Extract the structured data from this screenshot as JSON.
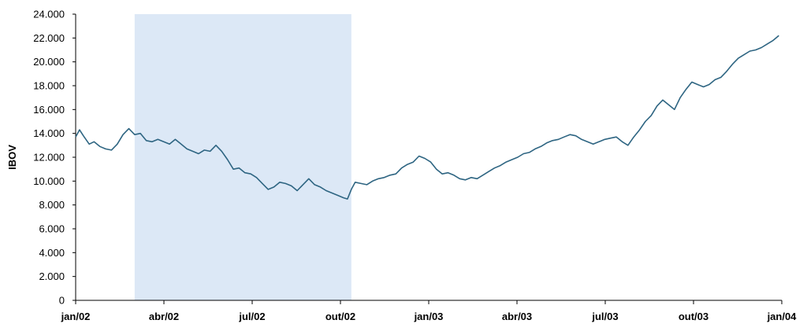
{
  "chart_data": {
    "type": "line",
    "title": "",
    "xlabel": "",
    "ylabel": "IBOV",
    "ylim": [
      0,
      24000
    ],
    "xlim": [
      "2002-01-02",
      "2004-01-02"
    ],
    "grid": false,
    "yticks": [
      "0",
      "2.000",
      "4.000",
      "6.000",
      "8.000",
      "10.000",
      "12.000",
      "14.000",
      "16.000",
      "18.000",
      "20.000",
      "22.000",
      "24.000"
    ],
    "xticks": [
      "jan/02",
      "abr/02",
      "jul/02",
      "out/02",
      "jan/03",
      "abr/03",
      "jul/03",
      "out/03",
      "jan/04"
    ],
    "shaded_region": {
      "from": "2002-03-04",
      "to": "2002-10-14",
      "color": "#dce8f6"
    },
    "line_color": "#2e6582",
    "series": [
      {
        "x": [
          "2002-01-02",
          "2002-01-06",
          "2002-01-10",
          "2002-01-16",
          "2002-01-21",
          "2002-01-27",
          "2002-02-02",
          "2002-02-08",
          "2002-02-14",
          "2002-02-20",
          "2002-02-26",
          "2002-03-04",
          "2002-03-10",
          "2002-03-16",
          "2002-03-22",
          "2002-03-28",
          "2002-04-03",
          "2002-04-09",
          "2002-04-15",
          "2002-04-21",
          "2002-04-27",
          "2002-05-03",
          "2002-05-09",
          "2002-05-15",
          "2002-05-21",
          "2002-05-27",
          "2002-06-02",
          "2002-06-08",
          "2002-06-14",
          "2002-06-20",
          "2002-06-26",
          "2002-07-02",
          "2002-07-08",
          "2002-07-14",
          "2002-07-20",
          "2002-07-26",
          "2002-08-01",
          "2002-08-07",
          "2002-08-13",
          "2002-08-19",
          "2002-08-25",
          "2002-08-31",
          "2002-09-06",
          "2002-09-12",
          "2002-09-18",
          "2002-09-24",
          "2002-09-30",
          "2002-10-06",
          "2002-10-10",
          "2002-10-14",
          "2002-10-18",
          "2002-10-24",
          "2002-10-30",
          "2002-11-05",
          "2002-11-11",
          "2002-11-17",
          "2002-11-23",
          "2002-11-29",
          "2002-12-05",
          "2002-12-11",
          "2002-12-17",
          "2002-12-23",
          "2002-12-29",
          "2003-01-04",
          "2003-01-10",
          "2003-01-16",
          "2003-01-22",
          "2003-01-28",
          "2003-02-03",
          "2003-02-09",
          "2003-02-15",
          "2003-02-21",
          "2003-02-27",
          "2003-03-05",
          "2003-03-11",
          "2003-03-17",
          "2003-03-23",
          "2003-03-29",
          "2003-04-04",
          "2003-04-10",
          "2003-04-16",
          "2003-04-22",
          "2003-04-28",
          "2003-05-04",
          "2003-05-10",
          "2003-05-16",
          "2003-05-22",
          "2003-05-28",
          "2003-06-03",
          "2003-06-09",
          "2003-06-15",
          "2003-06-21",
          "2003-06-27",
          "2003-07-03",
          "2003-07-09",
          "2003-07-15",
          "2003-07-21",
          "2003-07-27",
          "2003-08-02",
          "2003-08-08",
          "2003-08-14",
          "2003-08-20",
          "2003-08-26",
          "2003-09-01",
          "2003-09-07",
          "2003-09-13",
          "2003-09-19",
          "2003-09-25",
          "2003-10-01",
          "2003-10-07",
          "2003-10-13",
          "2003-10-19",
          "2003-10-25",
          "2003-10-31",
          "2003-11-06",
          "2003-11-12",
          "2003-11-18",
          "2003-11-24",
          "2003-11-30",
          "2003-12-06",
          "2003-12-12",
          "2003-12-18",
          "2003-12-24",
          "2003-12-30"
        ],
        "values": [
          13700,
          14300,
          13800,
          13100,
          13300,
          12900,
          12700,
          12600,
          13100,
          13900,
          14400,
          13900,
          14000,
          13400,
          13300,
          13500,
          13300,
          13100,
          13500,
          13100,
          12700,
          12500,
          12300,
          12600,
          12500,
          13000,
          12500,
          11800,
          11000,
          11100,
          10700,
          10600,
          10300,
          9800,
          9300,
          9500,
          9900,
          9800,
          9600,
          9200,
          9700,
          10200,
          9700,
          9500,
          9200,
          9000,
          8800,
          8600,
          8500,
          9300,
          9900,
          9800,
          9700,
          10000,
          10200,
          10300,
          10500,
          10600,
          11100,
          11400,
          11600,
          12100,
          11900,
          11600,
          11000,
          10600,
          10700,
          10500,
          10200,
          10100,
          10300,
          10200,
          10500,
          10800,
          11100,
          11300,
          11600,
          11800,
          12000,
          12300,
          12400,
          12700,
          12900,
          13200,
          13400,
          13500,
          13700,
          13900,
          13800,
          13500,
          13300,
          13100,
          13300,
          13500,
          13600,
          13700,
          13300,
          13000,
          13700,
          14300,
          15000,
          15500,
          16300,
          16800,
          16400,
          16000,
          17000,
          17700,
          18300,
          18100,
          17900,
          18100,
          18500,
          18700,
          19200,
          19800,
          20300,
          20600,
          20900,
          21000,
          21200,
          21500,
          21800,
          22200
        ]
      }
    ]
  }
}
